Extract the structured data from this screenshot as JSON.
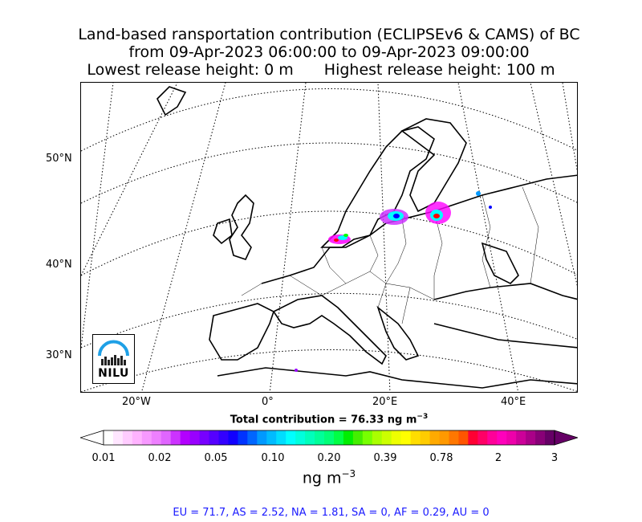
{
  "header": {
    "line1": "Land-based ransportation contribution (ECLIPSEv6 & CAMS) of BC",
    "line2": "from 09-Apr-2023 06:00:00 to 09-Apr-2023 09:00:00",
    "line3_left": "Lowest release height: 0 m",
    "line3_right": "Highest release height: 100 m"
  },
  "map": {
    "lat_labels": [
      "50°N",
      "40°N",
      "30°N"
    ],
    "lon_labels": [
      "20°W",
      "0°",
      "20°E",
      "40°E"
    ],
    "logo_text": "NILU",
    "coast_color": "#000000",
    "grid_style": "dotted",
    "plume_colors": [
      "#ff00ff",
      "#00ffff",
      "#0000ff",
      "#00ff00",
      "#ff0000",
      "#9900ff"
    ]
  },
  "total": {
    "label": "Total contribution = 76.33 ng m",
    "exp": "−3"
  },
  "colorbar": {
    "tick_labels": [
      "0.01",
      "0.02",
      "0.05",
      "0.10",
      "0.20",
      "0.39",
      "0.78",
      "2",
      "3"
    ],
    "unit_base": "ng m",
    "unit_exp": "−3",
    "colors": [
      "#ffffff",
      "#ffe6ff",
      "#ffccff",
      "#ffb3ff",
      "#f799ff",
      "#ee80ff",
      "#e066ff",
      "#cc33ff",
      "#b300ff",
      "#9900ff",
      "#7700ff",
      "#5500ff",
      "#3300ff",
      "#1100ff",
      "#0033ff",
      "#0066ff",
      "#0099ff",
      "#00bbff",
      "#00ddff",
      "#00ffff",
      "#00ffdd",
      "#00ffbb",
      "#00ff99",
      "#00ff77",
      "#00ff44",
      "#00ee00",
      "#44ee00",
      "#77ff00",
      "#aaff00",
      "#ccff00",
      "#eeff00",
      "#ffff00",
      "#ffdd00",
      "#ffcc00",
      "#ffaa00",
      "#ff9900",
      "#ff7700",
      "#ff5500",
      "#ff0033",
      "#ff0066",
      "#ff0099",
      "#ff00bb",
      "#ee00aa",
      "#cc0099",
      "#aa0088",
      "#880077",
      "#660066"
    ]
  },
  "regions_line": "EU = 71.7,  AS = 2.52,  NA = 1.81,  SA = 0,  AF = 0.29,  AU = 0"
}
